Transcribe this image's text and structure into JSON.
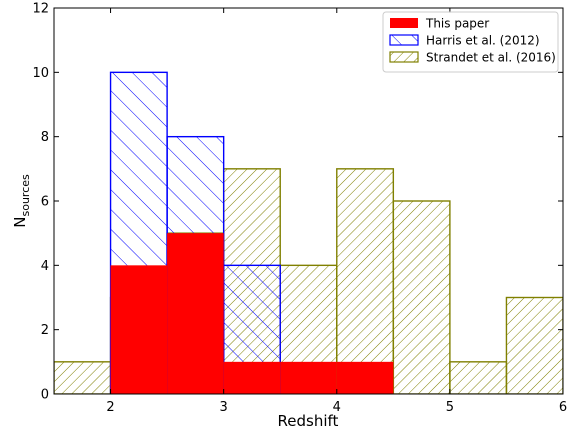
{
  "chart_data": {
    "type": "histogram",
    "title": "",
    "xlabel": "Redshift",
    "ylabel_main": "N",
    "ylabel_sub": "sources",
    "xlim": [
      1.5,
      6.0
    ],
    "ylim": [
      0,
      12
    ],
    "xticks": [
      2,
      3,
      4,
      5,
      6
    ],
    "yticks": [
      0,
      2,
      4,
      6,
      8,
      10,
      12
    ],
    "grid": false,
    "legend_position": "top-right",
    "series": [
      {
        "name": "This paper",
        "style": "filled",
        "color": "#ff0000",
        "bin_edges": [
          2.0,
          2.5,
          3.0,
          3.5,
          4.0,
          4.5
        ],
        "counts": [
          4,
          5,
          1,
          1,
          1
        ]
      },
      {
        "name": "Harris et al. (2012)",
        "style": "hatch-backslash",
        "color": "#0000ff",
        "bin_edges": [
          2.0,
          2.5,
          3.0,
          3.5
        ],
        "counts": [
          10,
          8,
          4
        ]
      },
      {
        "name": "Strandet et al. (2016)",
        "style": "hatch-slash",
        "color": "#808000",
        "bin_edges": [
          1.5,
          2.0,
          2.5,
          3.0,
          3.5,
          4.0,
          4.5,
          5.0,
          5.5,
          6.0
        ],
        "counts": [
          1,
          3,
          5,
          7,
          4,
          7,
          6,
          1,
          3
        ]
      }
    ]
  }
}
